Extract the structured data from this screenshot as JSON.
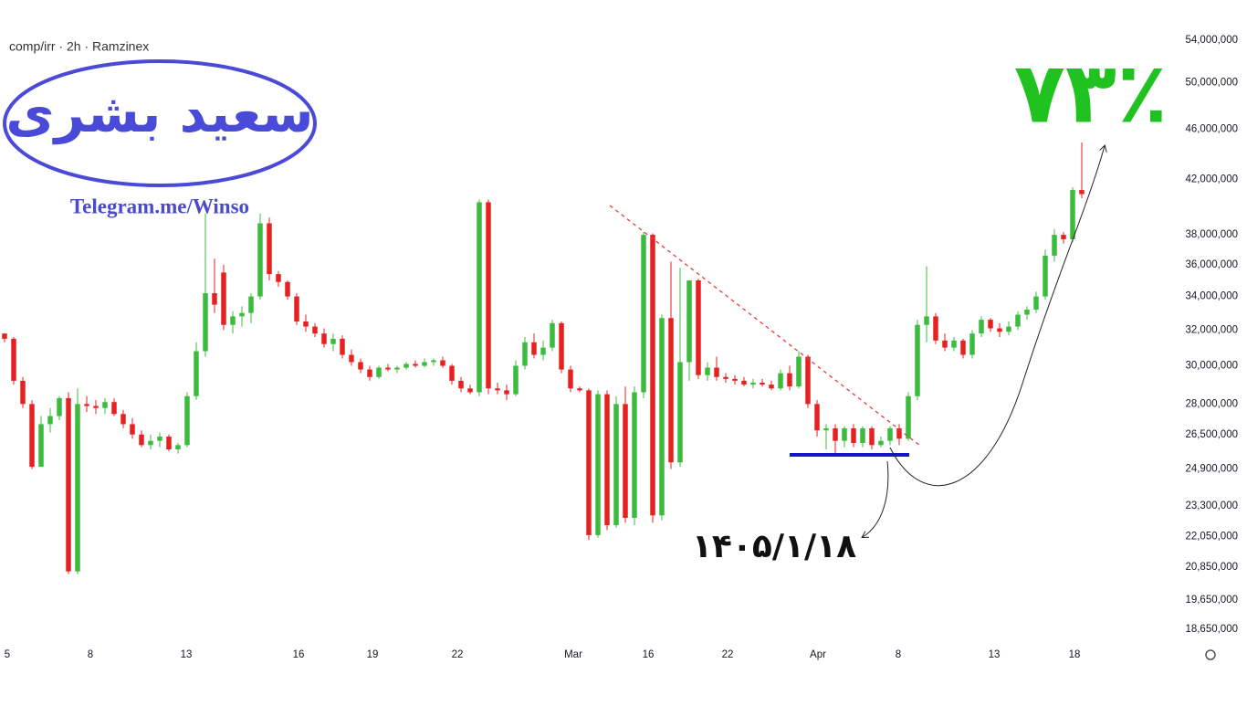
{
  "chart_data": {
    "type": "candlestick",
    "title": "comp/irr · 2h · Ramzinex",
    "logo_name": "سعید بشری",
    "logo_link": "Telegram.me/Winso",
    "gain_annotation": "۷۳٪",
    "date_annotation": "۱۴۰۵/۱/۱۸",
    "up_color": "#3dbb3f",
    "down_color": "#e52222",
    "log_scale": true,
    "xlim": [
      0,
      128
    ],
    "ylim": [
      18160000,
      58060000
    ],
    "xticks": [
      {
        "value": 0.8,
        "label": "5"
      },
      {
        "value": 9.9,
        "label": "8"
      },
      {
        "value": 20.4,
        "label": "13"
      },
      {
        "value": 32.7,
        "label": "16"
      },
      {
        "value": 40.8,
        "label": "19"
      },
      {
        "value": 50.1,
        "label": "22"
      },
      {
        "value": 62.8,
        "label": "Mar"
      },
      {
        "value": 71,
        "label": "16"
      },
      {
        "value": 79.7,
        "label": "22"
      },
      {
        "value": 89.6,
        "label": "Apr"
      },
      {
        "value": 98.4,
        "label": "8"
      },
      {
        "value": 108.9,
        "label": "13"
      },
      {
        "value": 117.7,
        "label": "18"
      }
    ],
    "yticks": [
      {
        "value": 54000000,
        "label": "54,000,000"
      },
      {
        "value": 50000000,
        "label": "50,000,000"
      },
      {
        "value": 46000000,
        "label": "46,000,000"
      },
      {
        "value": 42000000,
        "label": "42,000,000"
      },
      {
        "value": 38000000,
        "label": "38,000,000"
      },
      {
        "value": 36000000,
        "label": "36,000,000"
      },
      {
        "value": 34000000,
        "label": "34,000,000"
      },
      {
        "value": 32000000,
        "label": "32,000,000"
      },
      {
        "value": 30000000,
        "label": "30,000,000"
      },
      {
        "value": 28000000,
        "label": "28,000,000"
      },
      {
        "value": 26500000,
        "label": "26,500,000"
      },
      {
        "value": 24900000,
        "label": "24,900,000"
      },
      {
        "value": 23300000,
        "label": "23,300,000"
      },
      {
        "value": 22050000,
        "label": "22,050,000"
      },
      {
        "value": 20850000,
        "label": "20,850,000"
      },
      {
        "value": 19650000,
        "label": "19,650,000"
      },
      {
        "value": 18650000,
        "label": "18,650,000"
      }
    ],
    "open": [
      31800000,
      31500000,
      29200000,
      28000000,
      25000000,
      27000000,
      27400000,
      28300000,
      20700000,
      28000000,
      27900000,
      27800000,
      28100000,
      27500000,
      27000000,
      26500000,
      26000000,
      26200000,
      26400000,
      25800000,
      26000000,
      28400000,
      30800000,
      34200000,
      35500000,
      32300000,
      32800000,
      33000000,
      34000000,
      38800000,
      35400000,
      34900000,
      34000000,
      32500000,
      32200000,
      31800000,
      31200000,
      31500000,
      30600000,
      30200000,
      29800000,
      29400000,
      29900000,
      29800000,
      29900000,
      30100000,
      30000000,
      30200000,
      30300000,
      30000000,
      29200000,
      28800000,
      28600000,
      40300000,
      28800000,
      28700000,
      28500000,
      30000000,
      31300000,
      30600000,
      31000000,
      32400000,
      29800000,
      28800000,
      28700000,
      22100000,
      28500000,
      22500000,
      28000000,
      22800000,
      28600000,
      38000000,
      22900000,
      32700000,
      25200000,
      30200000,
      35000000,
      29500000,
      29900000,
      29400000,
      29300000,
      29200000,
      29000000,
      29100000,
      29000000,
      28800000,
      29600000,
      28900000,
      30500000,
      28000000,
      26700000,
      26800000,
      26200000,
      26800000,
      26100000,
      26800000,
      26000000,
      26200000,
      26800000,
      26300000,
      28400000,
      32300000,
      32800000,
      31400000,
      31000000,
      31400000,
      30600000,
      31800000,
      32600000,
      32100000,
      31900000,
      32200000,
      32900000,
      33200000,
      34000000,
      36600000,
      38000000,
      37700000,
      41200000
    ],
    "high": [
      31800000,
      31600000,
      29400000,
      28200000,
      27400000,
      27800000,
      28400000,
      28600000,
      28800000,
      28400000,
      28200000,
      28300000,
      28300000,
      27700000,
      27300000,
      26700000,
      26500000,
      26600000,
      26500000,
      26100000,
      28600000,
      31300000,
      39500000,
      36400000,
      36000000,
      33100000,
      33400000,
      34200000,
      39500000,
      39200000,
      35600000,
      35000000,
      34200000,
      32900000,
      32400000,
      32100000,
      31800000,
      31700000,
      30900000,
      30400000,
      30000000,
      30000000,
      30100000,
      30000000,
      30200000,
      30300000,
      30400000,
      30400000,
      30500000,
      30100000,
      29400000,
      29000000,
      40500000,
      40500000,
      29100000,
      29000000,
      30300000,
      31600000,
      31800000,
      31400000,
      32600000,
      32500000,
      30000000,
      28900000,
      28800000,
      28700000,
      28700000,
      28400000,
      28900000,
      28900000,
      38200000,
      38100000,
      32900000,
      36200000,
      35800000,
      35000000,
      35100000,
      30200000,
      30500000,
      29600000,
      29500000,
      29400000,
      29300000,
      29300000,
      29200000,
      29800000,
      30000000,
      30800000,
      30600000,
      28200000,
      27000000,
      27000000,
      26900000,
      27000000,
      26900000,
      26900000,
      26400000,
      26900000,
      27000000,
      28600000,
      32600000,
      35900000,
      33000000,
      31800000,
      31600000,
      31500000,
      32000000,
      32800000,
      32700000,
      32400000,
      32500000,
      33100000,
      33400000,
      34300000,
      37000000,
      38400000,
      38200000,
      41400000,
      44900000
    ],
    "low": [
      31300000,
      29000000,
      27800000,
      24900000,
      25000000,
      26600000,
      27200000,
      20600000,
      20600000,
      27600000,
      27500000,
      27500000,
      27400000,
      26800000,
      26300000,
      25900000,
      25800000,
      25900000,
      25700000,
      25600000,
      25900000,
      28200000,
      30500000,
      33000000,
      32000000,
      31800000,
      32200000,
      32400000,
      33800000,
      35000000,
      34600000,
      33800000,
      32300000,
      31900000,
      31600000,
      31000000,
      30800000,
      30400000,
      30000000,
      29600000,
      29200000,
      29300000,
      29700000,
      29600000,
      29800000,
      29900000,
      29900000,
      30000000,
      29900000,
      29000000,
      28600000,
      28500000,
      28400000,
      28500000,
      28500000,
      28200000,
      28400000,
      29800000,
      30400000,
      30300000,
      30800000,
      29600000,
      28600000,
      28600000,
      21900000,
      22000000,
      22300000,
      22400000,
      22600000,
      22500000,
      28300000,
      22600000,
      22700000,
      24900000,
      25000000,
      29200000,
      29300000,
      29200000,
      29200000,
      29100000,
      29000000,
      28900000,
      28800000,
      28900000,
      28700000,
      28700000,
      28700000,
      28800000,
      27800000,
      26400000,
      25800000,
      25600000,
      25900000,
      25900000,
      25900000,
      25800000,
      25900000,
      26000000,
      26000000,
      26200000,
      28200000,
      31300000,
      31200000,
      30800000,
      30800000,
      30400000,
      30400000,
      31600000,
      31900000,
      31600000,
      31700000,
      32000000,
      32600000,
      33000000,
      33800000,
      36200000,
      37400000,
      37500000,
      40600000
    ],
    "close": [
      31500000,
      29200000,
      28000000,
      25000000,
      27000000,
      27400000,
      28300000,
      20700000,
      28000000,
      27900000,
      27800000,
      28100000,
      27500000,
      27000000,
      26500000,
      26000000,
      26200000,
      26400000,
      25800000,
      26000000,
      28400000,
      30800000,
      34200000,
      33500000,
      32300000,
      32800000,
      33000000,
      34000000,
      38800000,
      35400000,
      34900000,
      34000000,
      32500000,
      32200000,
      31800000,
      31200000,
      31500000,
      30600000,
      30200000,
      29800000,
      29400000,
      29900000,
      29800000,
      29900000,
      30100000,
      30000000,
      30200000,
      30300000,
      30000000,
      29200000,
      28800000,
      28600000,
      40300000,
      28800000,
      28700000,
      28500000,
      30000000,
      31300000,
      30600000,
      31000000,
      32400000,
      29800000,
      28800000,
      28700000,
      22100000,
      28500000,
      22500000,
      28000000,
      22800000,
      28600000,
      38000000,
      22900000,
      32700000,
      25200000,
      30200000,
      35000000,
      29500000,
      29900000,
      29400000,
      29300000,
      29200000,
      29000000,
      29100000,
      29000000,
      28800000,
      29600000,
      28900000,
      30500000,
      28000000,
      26700000,
      26800000,
      26200000,
      26800000,
      26100000,
      26800000,
      26000000,
      26200000,
      26800000,
      26300000,
      28400000,
      32300000,
      32800000,
      31400000,
      31000000,
      31400000,
      30600000,
      31800000,
      32600000,
      32100000,
      31900000,
      32200000,
      32900000,
      33200000,
      34000000,
      36600000,
      38000000,
      37700000,
      41200000,
      40900000
    ]
  }
}
